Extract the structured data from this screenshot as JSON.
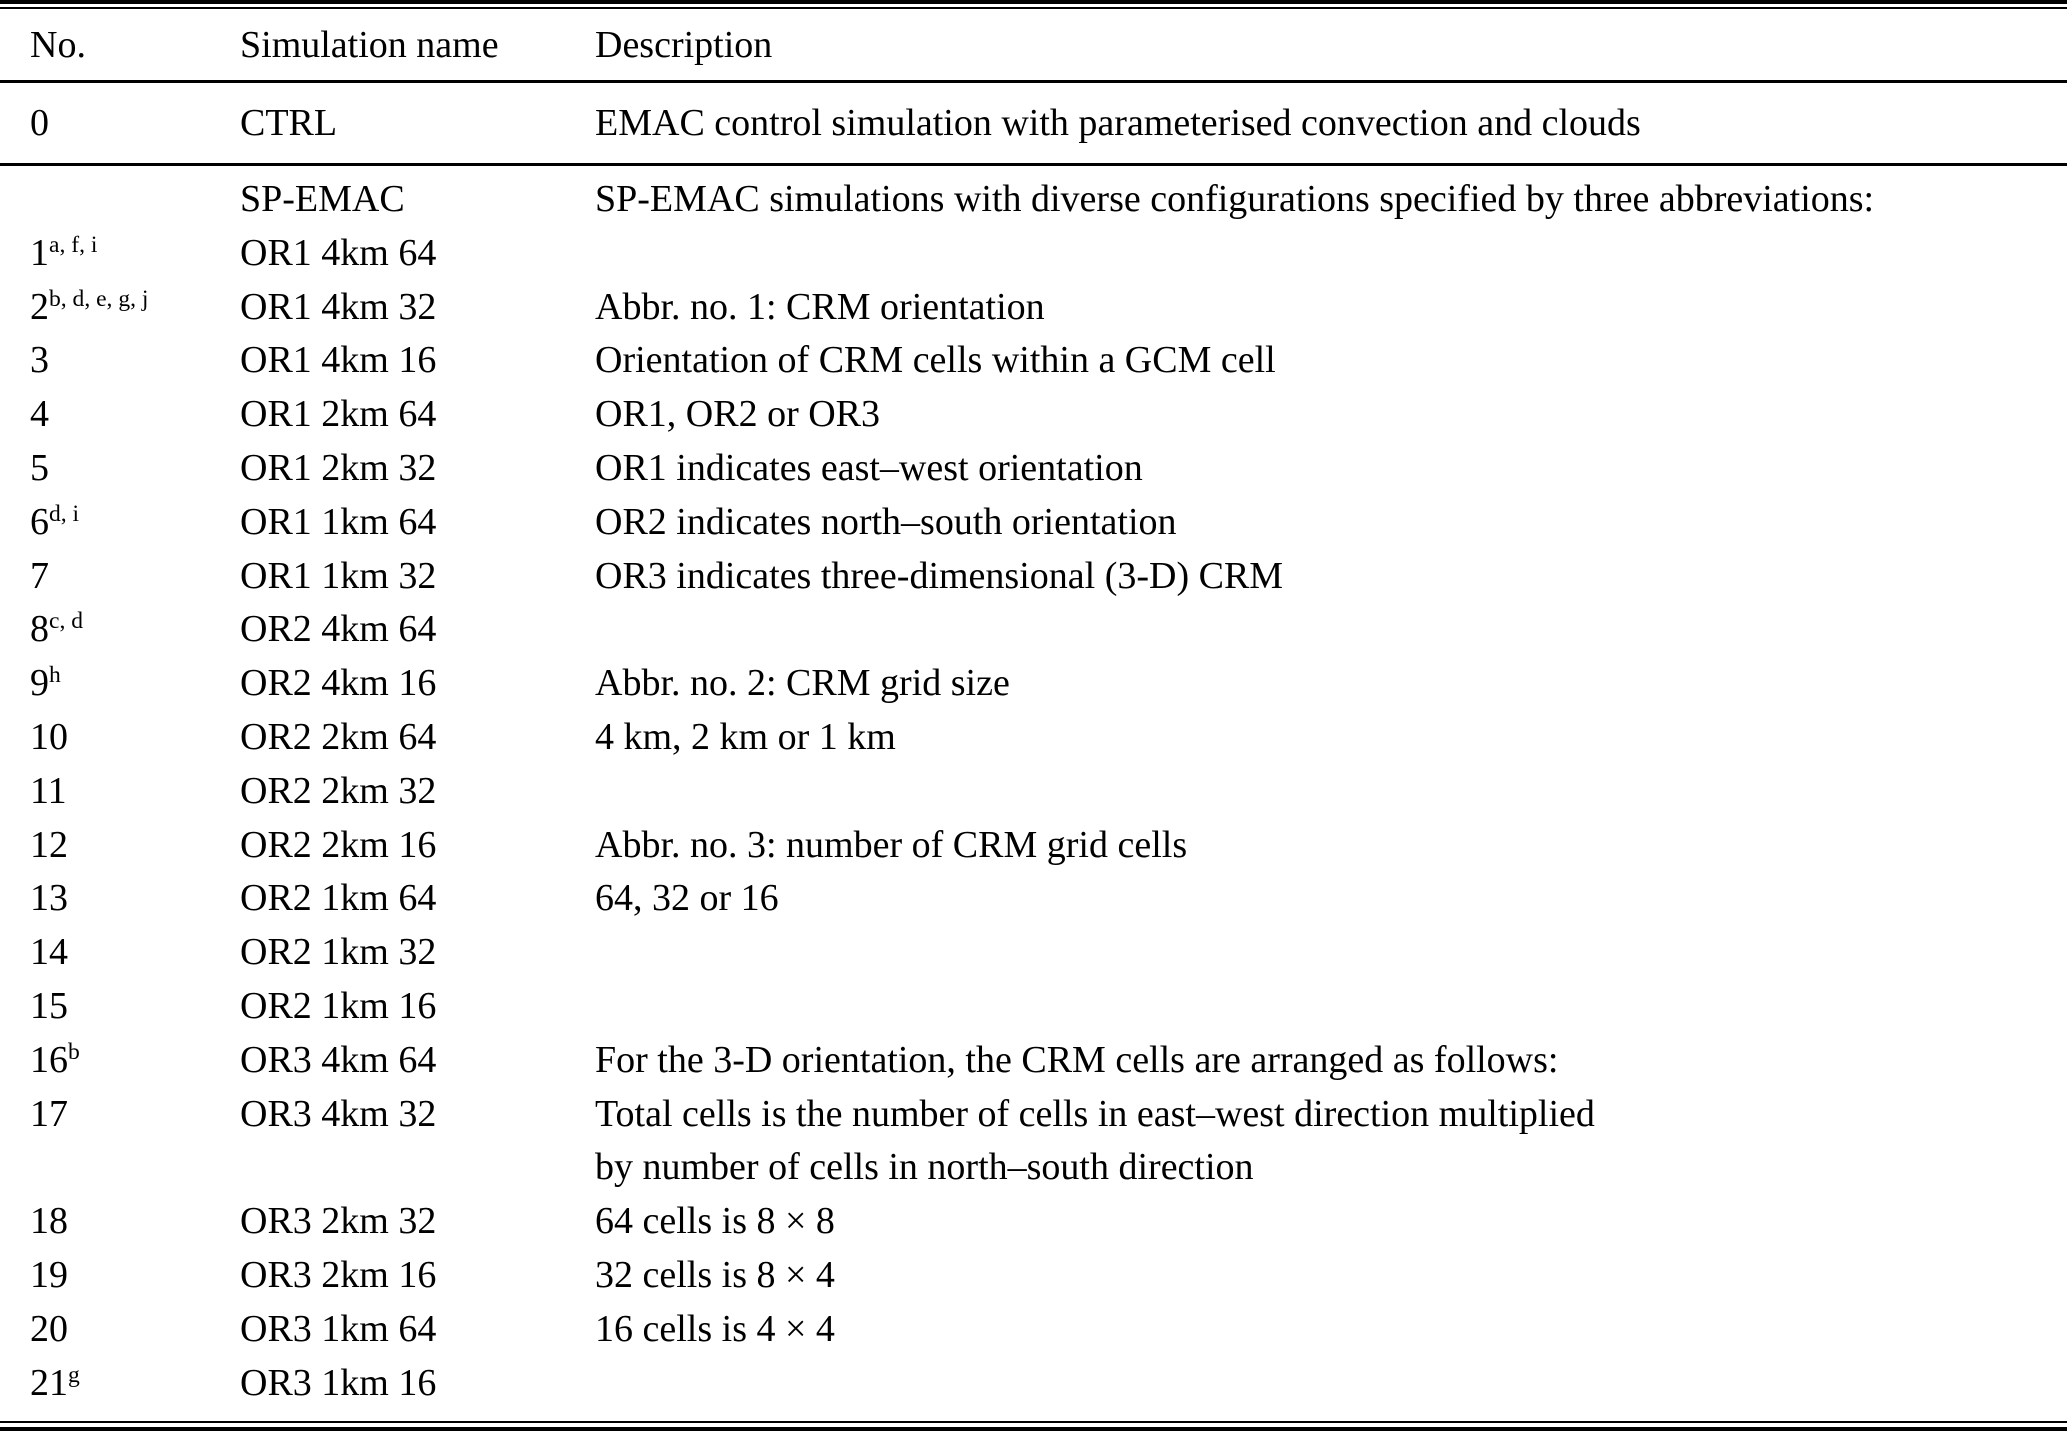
{
  "table": {
    "header": {
      "no": "No.",
      "name": "Simulation name",
      "desc": "Description"
    },
    "ctrl_row": {
      "no": "0",
      "sup": "",
      "name": "CTRL",
      "desc": [
        "EMAC control simulation with parameterised convection and clouds"
      ]
    },
    "body_rows": [
      {
        "no": "",
        "sup": "",
        "name": "SP-EMAC",
        "desc": [
          "SP-EMAC simulations with diverse configurations specified by three abbreviations:"
        ]
      },
      {
        "no": "1",
        "sup": "a, f, i",
        "name": "OR1 4km 64",
        "desc": []
      },
      {
        "no": "2",
        "sup": "b, d, e, g, j",
        "name": "OR1 4km 32",
        "desc": [
          "Abbr. no. 1: CRM orientation"
        ]
      },
      {
        "no": "3",
        "sup": "",
        "name": "OR1 4km 16",
        "desc": [
          "Orientation of CRM cells within a GCM cell"
        ]
      },
      {
        "no": "4",
        "sup": "",
        "name": "OR1 2km 64",
        "desc": [
          "OR1, OR2 or OR3"
        ]
      },
      {
        "no": "5",
        "sup": "",
        "name": "OR1 2km 32",
        "desc": [
          "OR1 indicates east–west orientation"
        ]
      },
      {
        "no": "6",
        "sup": "d, i",
        "name": "OR1 1km 64",
        "desc": [
          "OR2 indicates north–south orientation"
        ]
      },
      {
        "no": "7",
        "sup": "",
        "name": "OR1 1km 32",
        "desc": [
          "OR3 indicates three-dimensional (3-D) CRM"
        ]
      },
      {
        "no": "8",
        "sup": "c, d",
        "name": "OR2 4km 64",
        "desc": []
      },
      {
        "no": "9",
        "sup": "h",
        "name": "OR2 4km 16",
        "desc": [
          "Abbr. no. 2: CRM grid size"
        ]
      },
      {
        "no": "10",
        "sup": "",
        "name": "OR2 2km 64",
        "desc": [
          "4 km, 2 km or 1 km"
        ]
      },
      {
        "no": "11",
        "sup": "",
        "name": "OR2 2km 32",
        "desc": []
      },
      {
        "no": "12",
        "sup": "",
        "name": "OR2 2km 16",
        "desc": [
          "Abbr. no. 3: number of CRM grid cells"
        ]
      },
      {
        "no": "13",
        "sup": "",
        "name": "OR2 1km 64",
        "desc": [
          "64, 32 or 16"
        ]
      },
      {
        "no": "14",
        "sup": "",
        "name": "OR2 1km 32",
        "desc": []
      },
      {
        "no": "15",
        "sup": "",
        "name": "OR2 1km 16",
        "desc": []
      },
      {
        "no": "16",
        "sup": "b",
        "name": "OR3 4km 64",
        "desc": [
          "For the 3-D orientation, the CRM cells are arranged as follows:"
        ]
      },
      {
        "no": "17",
        "sup": "",
        "name": "OR3 4km 32",
        "desc": [
          "Total cells is the number of cells in east–west direction multiplied",
          "by number of cells in north–south direction"
        ]
      },
      {
        "no": "18",
        "sup": "",
        "name": "OR3 2km 32",
        "desc": [
          "64 cells is 8 × 8"
        ]
      },
      {
        "no": "19",
        "sup": "",
        "name": "OR3 2km 16",
        "desc": [
          "32 cells is 8 × 4"
        ]
      },
      {
        "no": "20",
        "sup": "",
        "name": "OR3 1km 64",
        "desc": [
          "16 cells is 4 × 4"
        ]
      },
      {
        "no": "21",
        "sup": "g",
        "name": "OR3 1km 16",
        "desc": []
      }
    ]
  }
}
